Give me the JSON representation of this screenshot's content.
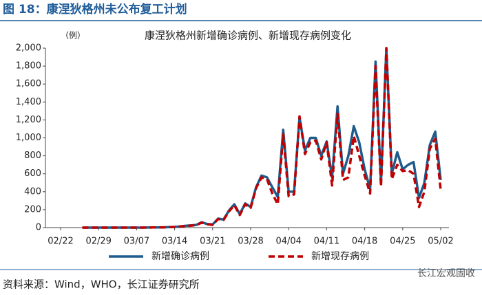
{
  "header": {
    "title": "图 18：康涅狄格州未公布复工计划"
  },
  "chart_data": {
    "type": "line",
    "title": "康涅狄格州新增确诊病例、新增现存病例变化",
    "y_label": "（例）",
    "x": [
      "02/26",
      "02/27",
      "02/28",
      "02/29",
      "03/01",
      "03/02",
      "03/03",
      "03/04",
      "03/05",
      "03/06",
      "03/07",
      "03/08",
      "03/09",
      "03/10",
      "03/11",
      "03/12",
      "03/13",
      "03/14",
      "03/15",
      "03/16",
      "03/17",
      "03/18",
      "03/19",
      "03/20",
      "03/21",
      "03/22",
      "03/23",
      "03/24",
      "03/25",
      "03/26",
      "03/27",
      "03/28",
      "03/29",
      "03/30",
      "03/31",
      "04/01",
      "04/02",
      "04/03",
      "04/04",
      "04/05",
      "04/06",
      "04/07",
      "04/08",
      "04/09",
      "04/10",
      "04/11",
      "04/12",
      "04/13",
      "04/14",
      "04/15",
      "04/16",
      "04/17",
      "04/18",
      "04/19",
      "04/20",
      "04/21",
      "04/22",
      "04/23",
      "04/24",
      "04/25",
      "04/26",
      "04/27",
      "04/28",
      "04/29",
      "04/30",
      "05/01",
      "05/02"
    ],
    "series": [
      {
        "name": "新增确诊病例",
        "color": "#1f5c8b",
        "dashed": false,
        "values": [
          0,
          0,
          0,
          0,
          0,
          0,
          0,
          0,
          0,
          0,
          0,
          0,
          1,
          2,
          2,
          3,
          5,
          8,
          12,
          20,
          25,
          30,
          60,
          40,
          35,
          100,
          90,
          190,
          260,
          150,
          270,
          230,
          450,
          580,
          560,
          450,
          340,
          1090,
          400,
          400,
          1230,
          860,
          1000,
          1000,
          800,
          960,
          560,
          1350,
          600,
          800,
          1130,
          950,
          650,
          430,
          1850,
          500,
          2000,
          600,
          840,
          650,
          700,
          730,
          330,
          500,
          920,
          1070,
          530
        ]
      },
      {
        "name": "新增现存病例",
        "color": "#c00000",
        "dashed": true,
        "values": [
          0,
          0,
          0,
          0,
          0,
          0,
          0,
          0,
          0,
          0,
          0,
          0,
          1,
          2,
          2,
          3,
          5,
          8,
          12,
          18,
          22,
          28,
          55,
          38,
          30,
          95,
          85,
          180,
          250,
          140,
          260,
          220,
          440,
          560,
          540,
          380,
          260,
          1040,
          350,
          370,
          1240,
          820,
          950,
          970,
          760,
          950,
          470,
          1270,
          530,
          560,
          1020,
          800,
          580,
          380,
          1800,
          460,
          2000,
          540,
          700,
          630,
          640,
          600,
          230,
          400,
          880,
          990,
          420
        ]
      }
    ],
    "xlim": [
      "02/22",
      "05/02"
    ],
    "xticks": [
      "02/22",
      "02/29",
      "03/07",
      "03/14",
      "03/21",
      "03/28",
      "04/04",
      "04/11",
      "04/18",
      "04/25",
      "05/02"
    ],
    "ylim": [
      0,
      2000
    ],
    "yticks": [
      0,
      200,
      400,
      600,
      800,
      {
        "value": 1000,
        "label": "1,000"
      },
      {
        "value": 1200,
        "label": "1,200"
      },
      {
        "value": 1400,
        "label": "1,400"
      },
      {
        "value": 1600,
        "label": "1,600"
      },
      {
        "value": 1800,
        "label": "1,800"
      },
      {
        "value": 2000,
        "label": "2,000"
      }
    ],
    "grid": false
  },
  "footer": {
    "source": "资料来源：Wind，WHO，长江证券研究所",
    "watermark": "长江宏观固收"
  }
}
